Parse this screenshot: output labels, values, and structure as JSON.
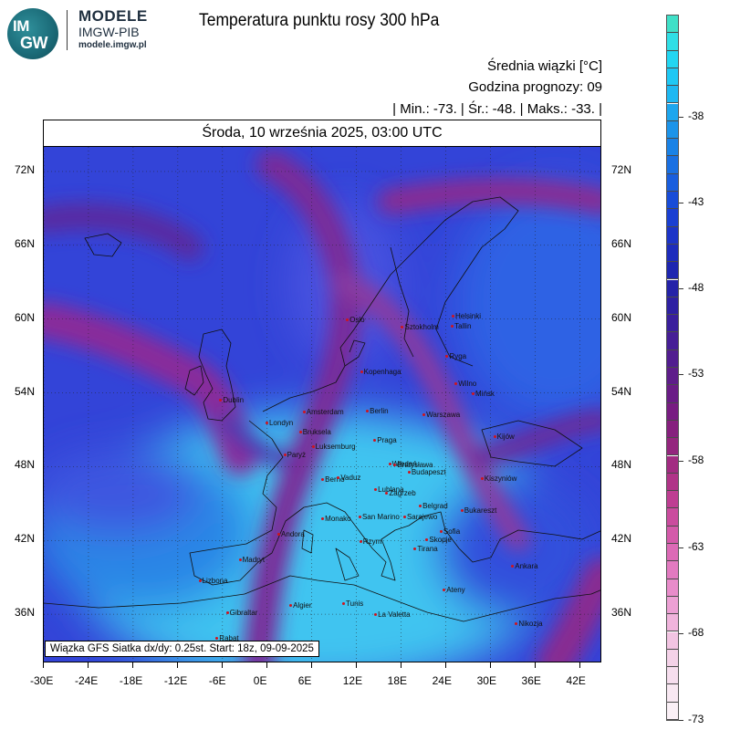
{
  "brand": {
    "logo_line1": "IM",
    "logo_line2": "GW",
    "name": "MODELE",
    "org": "IMGW-PIB",
    "url": "modele.imgw.pl"
  },
  "map": {
    "title": "Temperatura punktu rosy 300 hPa",
    "average_label": "Średnia wiązki [°C]",
    "forecast_hour": "Godzina prognozy: 09",
    "stats": "| Min.: -73. | Śr.: -48. | Maks.: -33. |",
    "date": "Środa, 10 września 2025, 03:00 UTC",
    "info": "Wiązka GFS Siatka dx/dy: 0.25st. Start: 18z, 09-09-2025",
    "lon_ticks": [
      "-30E",
      "-24E",
      "-18E",
      "-12E",
      "-6E",
      "0E",
      "6E",
      "12E",
      "18E",
      "24E",
      "30E",
      "36E",
      "42E"
    ],
    "lat_ticks": [
      "72N",
      "66N",
      "60N",
      "54N",
      "48N",
      "42N",
      "36N"
    ],
    "lon_range": [
      -30,
      45
    ],
    "lat_range": [
      74,
      32
    ],
    "cities": [
      {
        "name": "Oslo",
        "lon": 10.7,
        "lat": 59.9
      },
      {
        "name": "Helsinki",
        "lon": 24.9,
        "lat": 60.2
      },
      {
        "name": "Sztokholm",
        "lon": 18.1,
        "lat": 59.3
      },
      {
        "name": "Tallin",
        "lon": 24.8,
        "lat": 59.4
      },
      {
        "name": "Ryga",
        "lon": 24.1,
        "lat": 56.9
      },
      {
        "name": "Kopenhaga",
        "lon": 12.6,
        "lat": 55.7
      },
      {
        "name": "Wilno",
        "lon": 25.3,
        "lat": 54.7
      },
      {
        "name": "Mińsk",
        "lon": 27.6,
        "lat": 53.9
      },
      {
        "name": "Dublin",
        "lon": -6.3,
        "lat": 53.4
      },
      {
        "name": "Amsterdam",
        "lon": 4.9,
        "lat": 52.4
      },
      {
        "name": "Berlin",
        "lon": 13.4,
        "lat": 52.5
      },
      {
        "name": "Warszawa",
        "lon": 21.0,
        "lat": 52.2
      },
      {
        "name": "Londyn",
        "lon": -0.1,
        "lat": 51.5
      },
      {
        "name": "Bruksela",
        "lon": 4.4,
        "lat": 50.8
      },
      {
        "name": "Kijów",
        "lon": 30.5,
        "lat": 50.4
      },
      {
        "name": "Praga",
        "lon": 14.4,
        "lat": 50.1
      },
      {
        "name": "Luksemburg",
        "lon": 6.1,
        "lat": 49.6
      },
      {
        "name": "Paryż",
        "lon": 2.3,
        "lat": 48.9
      },
      {
        "name": "Wiedeń",
        "lon": 16.4,
        "lat": 48.2
      },
      {
        "name": "Bratysława",
        "lon": 17.1,
        "lat": 48.1
      },
      {
        "name": "Budapeszt",
        "lon": 19.0,
        "lat": 47.5
      },
      {
        "name": "Berno",
        "lon": 7.4,
        "lat": 46.9
      },
      {
        "name": "Vaduz",
        "lon": 9.5,
        "lat": 47.1
      },
      {
        "name": "Kiszyniów",
        "lon": 28.8,
        "lat": 47.0
      },
      {
        "name": "Lublana",
        "lon": 14.5,
        "lat": 46.1
      },
      {
        "name": "Zagrzeb",
        "lon": 16.0,
        "lat": 45.8
      },
      {
        "name": "Belgrad",
        "lon": 20.5,
        "lat": 44.8
      },
      {
        "name": "Bukareszt",
        "lon": 26.1,
        "lat": 44.4
      },
      {
        "name": "Monako",
        "lon": 7.4,
        "lat": 43.7
      },
      {
        "name": "San Marino",
        "lon": 12.4,
        "lat": 43.9
      },
      {
        "name": "Sarajewo",
        "lon": 18.4,
        "lat": 43.9
      },
      {
        "name": "Andora",
        "lon": 1.5,
        "lat": 42.5
      },
      {
        "name": "Sofia",
        "lon": 23.3,
        "lat": 42.7
      },
      {
        "name": "Skopje",
        "lon": 21.4,
        "lat": 42.0
      },
      {
        "name": "Rzym",
        "lon": 12.5,
        "lat": 41.9
      },
      {
        "name": "Tirana",
        "lon": 19.8,
        "lat": 41.3
      },
      {
        "name": "Madryt",
        "lon": -3.7,
        "lat": 40.4
      },
      {
        "name": "Ankara",
        "lon": 32.9,
        "lat": 39.9
      },
      {
        "name": "Lizbona",
        "lon": -9.1,
        "lat": 38.7
      },
      {
        "name": "Ateny",
        "lon": 23.7,
        "lat": 37.9
      },
      {
        "name": "Algier",
        "lon": 3.1,
        "lat": 36.7
      },
      {
        "name": "Tunis",
        "lon": 10.2,
        "lat": 36.8
      },
      {
        "name": "Gibraltar",
        "lon": -5.4,
        "lat": 36.1
      },
      {
        "name": "La Valetta",
        "lon": 14.5,
        "lat": 35.9
      },
      {
        "name": "Nikozja",
        "lon": 33.4,
        "lat": 35.2
      },
      {
        "name": "Rabat",
        "lon": -6.8,
        "lat": 34.0
      }
    ],
    "colors": {
      "dry_violet": "#7a2a9a",
      "mid_blue": "#3348e0",
      "moist_cyan": "#3ec9f2",
      "deep_blue": "#1a30c8"
    }
  },
  "colorbar": {
    "labels": [
      "-38",
      "-43",
      "-48",
      "-53",
      "-58",
      "-63",
      "-68",
      "-73"
    ],
    "steps": [
      "#40e0c8",
      "#30dfe6",
      "#22d6f2",
      "#1fc8f4",
      "#1eb8f2",
      "#1da6ee",
      "#1c94ea",
      "#1a82e6",
      "#1a70e2",
      "#195ede",
      "#184cd8",
      "#1a3fd2",
      "#1c34c8",
      "#1d2cbc",
      "#1e26b0",
      "#2422a8",
      "#2e20a2",
      "#3a1f9c",
      "#461e96",
      "#521d90",
      "#5e1d8a",
      "#6a1c86",
      "#781d82",
      "#86207e",
      "#94267e",
      "#a22c82",
      "#b03488",
      "#be3e92",
      "#ca4c9e",
      "#d45aaa",
      "#dc6ab6",
      "#e27ac0",
      "#e88cca",
      "#eca0d4",
      "#f0b4dc",
      "#f2c4e2",
      "#f4d2e8",
      "#f6deee",
      "#f8e8f2",
      "#faf0f6"
    ]
  }
}
